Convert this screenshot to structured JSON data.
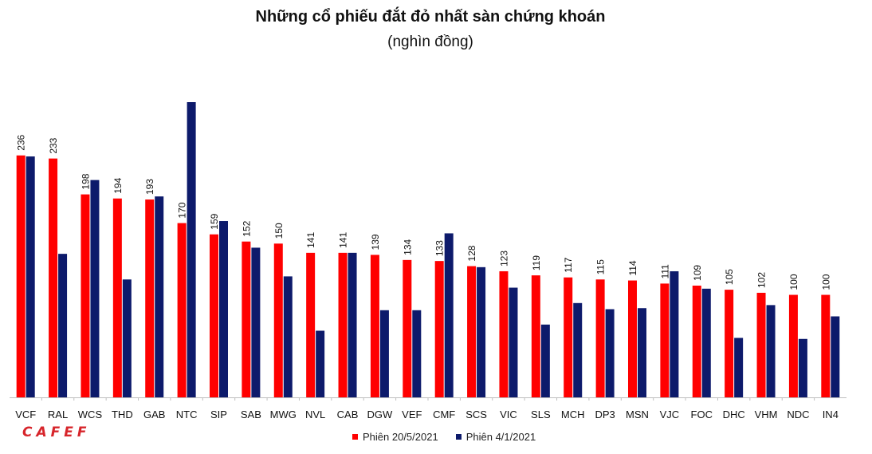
{
  "header": {
    "title": "Những cổ phiếu đắt đỏ nhất sàn chứng khoán",
    "subtitle": "(nghìn đồng)"
  },
  "logo": {
    "text": "CAFEF"
  },
  "colors": {
    "series1": "#ff0000",
    "series2": "#0d1a6b",
    "axis": "#bfbfbf"
  },
  "chart_data": {
    "type": "bar",
    "title": "Những cổ phiếu đắt đỏ nhất sàn chứng khoán",
    "subtitle": "(nghìn đồng)",
    "categories": [
      "VCF",
      "RAL",
      "WCS",
      "THD",
      "GAB",
      "NTC",
      "SIP",
      "SAB",
      "MWG",
      "NVL",
      "CAB",
      "DGW",
      "VEF",
      "CMF",
      "SCS",
      "VIC",
      "SLS",
      "MCH",
      "DP3",
      "MSN",
      "VJC",
      "FOC",
      "DHC",
      "VHM",
      "NDC",
      "IN4"
    ],
    "series": [
      {
        "name": "Phiên 20/5/2021",
        "color": "#ff0000",
        "values": [
          236,
          233,
          198,
          194,
          193,
          170,
          159,
          152,
          150,
          141,
          141,
          139,
          134,
          133,
          128,
          123,
          119,
          117,
          115,
          114,
          111,
          109,
          105,
          102,
          100,
          100
        ],
        "labels": [
          "236",
          "233",
          "198",
          "194",
          "193",
          "170",
          "159",
          "152",
          "150",
          "141",
          "141",
          "139",
          "134",
          "133",
          "128",
          "123",
          "119",
          "117",
          "115",
          "114",
          "111",
          "109",
          "105",
          "102",
          "100",
          "100"
        ]
      },
      {
        "name": "Phiên 4/1/2021",
        "color": "#0d1a6b",
        "values": [
          235,
          140,
          212,
          115,
          196,
          288,
          172,
          146,
          118,
          65,
          141,
          85,
          85,
          160,
          127,
          107,
          71,
          92,
          86,
          87,
          123,
          106,
          58,
          90,
          57,
          79
        ]
      }
    ],
    "ylim": [
      0,
      300
    ],
    "grid": false,
    "legend_position": "bottom"
  }
}
